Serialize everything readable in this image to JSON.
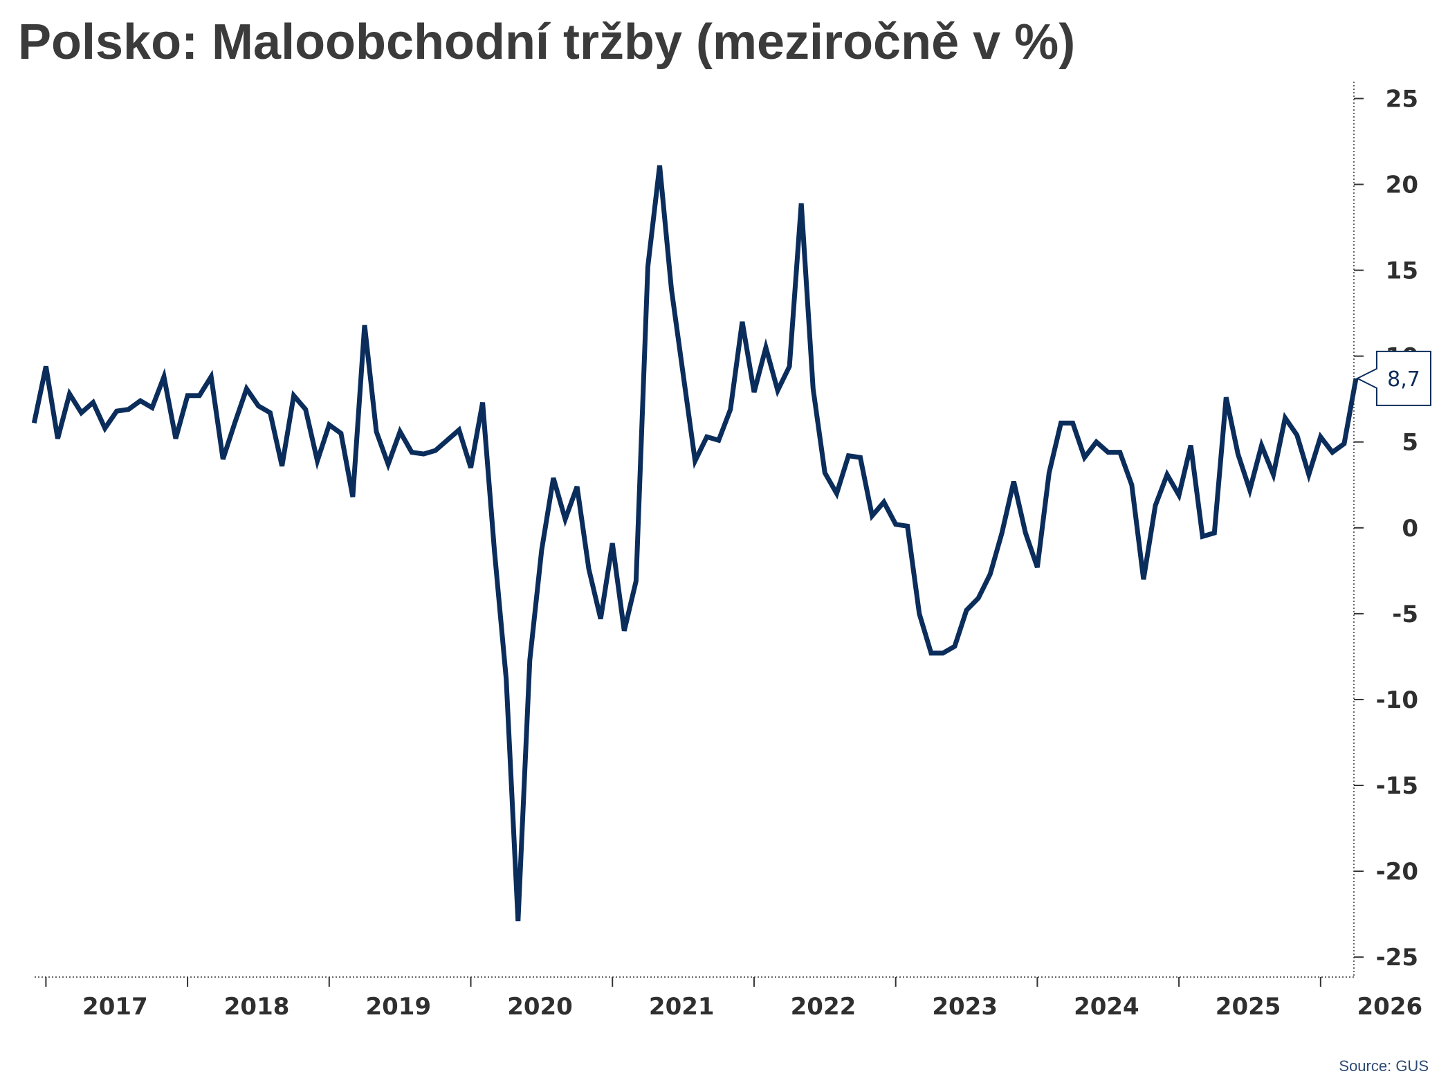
{
  "title": "Polsko: Maloobchodní tržby (meziročně v %)",
  "source": "Source: GUS",
  "colors": {
    "line": "#0b2d5b",
    "title": "#3b3b3b",
    "axis": "#333333",
    "source": "#2d4a73"
  },
  "chart_data": {
    "type": "line",
    "title": "Polsko: Maloobchodní tržby (meziročně v %)",
    "xlabel": "",
    "ylabel": "",
    "y_axis_position": "right",
    "ylim": [
      -26,
      25.5
    ],
    "yticks": [
      25,
      20,
      15,
      10,
      5,
      0,
      -5,
      -10,
      -15,
      -20,
      -25
    ],
    "ytick_labels": [
      "25",
      "20",
      "15",
      "10",
      "5",
      "0",
      "-5",
      "-10",
      "-15",
      "-20",
      "-25"
    ],
    "xlim": [
      2016.92,
      2026.25
    ],
    "xticks": [
      2017,
      2018,
      2019,
      2020,
      2021,
      2022,
      2023,
      2024,
      2025,
      2026
    ],
    "xtick_labels": [
      "2017",
      "2018",
      "2019",
      "2020",
      "2021",
      "2022",
      "2023",
      "2024",
      "2025",
      "2026"
    ],
    "grid": false,
    "legend": "none",
    "last_value_label": "8,7",
    "series": [
      {
        "frequency": "monthly",
        "start": "2016-12",
        "values": [
          6.1,
          9.4,
          5.2,
          7.8,
          6.7,
          7.3,
          5.8,
          6.8,
          6.9,
          7.4,
          7.0,
          8.8,
          5.2,
          7.7,
          7.7,
          8.8,
          4.0,
          6.1,
          8.1,
          7.1,
          6.7,
          3.6,
          7.7,
          6.9,
          3.9,
          6.0,
          5.5,
          1.8,
          11.8,
          5.6,
          3.7,
          5.6,
          4.4,
          4.3,
          4.5,
          5.1,
          5.7,
          3.5,
          7.3,
          -1.3,
          -8.8,
          -22.9,
          -7.7,
          -1.3,
          2.9,
          0.5,
          2.4,
          -2.4,
          -5.3,
          -0.9,
          -6.0,
          -3.1,
          15.2,
          21.1,
          13.9,
          8.9,
          3.9,
          5.3,
          5.1,
          6.9,
          12.0,
          7.9,
          10.5,
          8.0,
          9.4,
          18.9,
          8.1,
          3.2,
          2.0,
          4.2,
          4.1,
          0.7,
          1.5,
          0.2,
          0.1,
          -5.0,
          -7.3,
          -7.3,
          -6.9,
          -4.8,
          -4.1,
          -2.7,
          -0.3,
          2.7,
          -0.3,
          -2.3,
          3.2,
          6.1,
          6.1,
          4.1,
          5.0,
          4.4,
          4.4,
          2.5,
          -3.0,
          1.3,
          3.1,
          1.9,
          4.8,
          -0.5,
          -0.3,
          7.6,
          4.3,
          2.2,
          4.8,
          3.1,
          6.4,
          5.4,
          3.1,
          5.3,
          4.4,
          4.9,
          8.7
        ]
      }
    ]
  }
}
